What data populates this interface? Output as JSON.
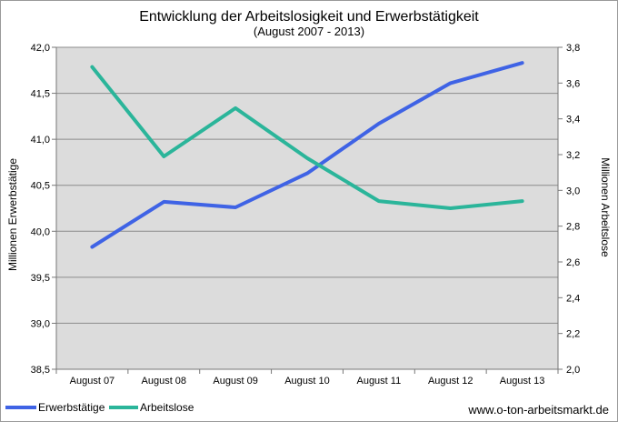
{
  "chart_data": {
    "type": "line",
    "title": "Entwicklung der Arbeitslosigkeit und Erwerbstätigkeit",
    "subtitle": "(August 2007 - 2013)",
    "categories": [
      "August 07",
      "August 08",
      "August 09",
      "August 10",
      "August 11",
      "August 12",
      "August 13"
    ],
    "y_left": {
      "label": "Millionen Erwerbstätige",
      "range": [
        38.5,
        42.0
      ],
      "ticks": [
        "38,5",
        "39,0",
        "39,5",
        "40,0",
        "40,5",
        "41,0",
        "41,5",
        "42,0"
      ]
    },
    "y_right": {
      "label": "Millionen Arbeitslose",
      "range": [
        2.0,
        3.8
      ],
      "ticks": [
        "2,0",
        "2,2",
        "2,4",
        "2,6",
        "2,8",
        "3,0",
        "3,2",
        "3,4",
        "3,6",
        "3,8"
      ]
    },
    "series": [
      {
        "name": "Erwerbstätige",
        "axis": "left",
        "color": "#3f63e5",
        "values": [
          39.83,
          40.32,
          40.26,
          40.63,
          41.17,
          41.61,
          41.83
        ]
      },
      {
        "name": "Arbeitslose",
        "axis": "right",
        "color": "#2bb59a",
        "values": [
          3.69,
          3.19,
          3.46,
          3.18,
          2.94,
          2.9,
          2.94
        ]
      }
    ],
    "grid": true,
    "plot_background": "#dcdcdc",
    "legend_position": "bottom-left",
    "source": "www.o-ton-arbeitsmarkt.de"
  }
}
